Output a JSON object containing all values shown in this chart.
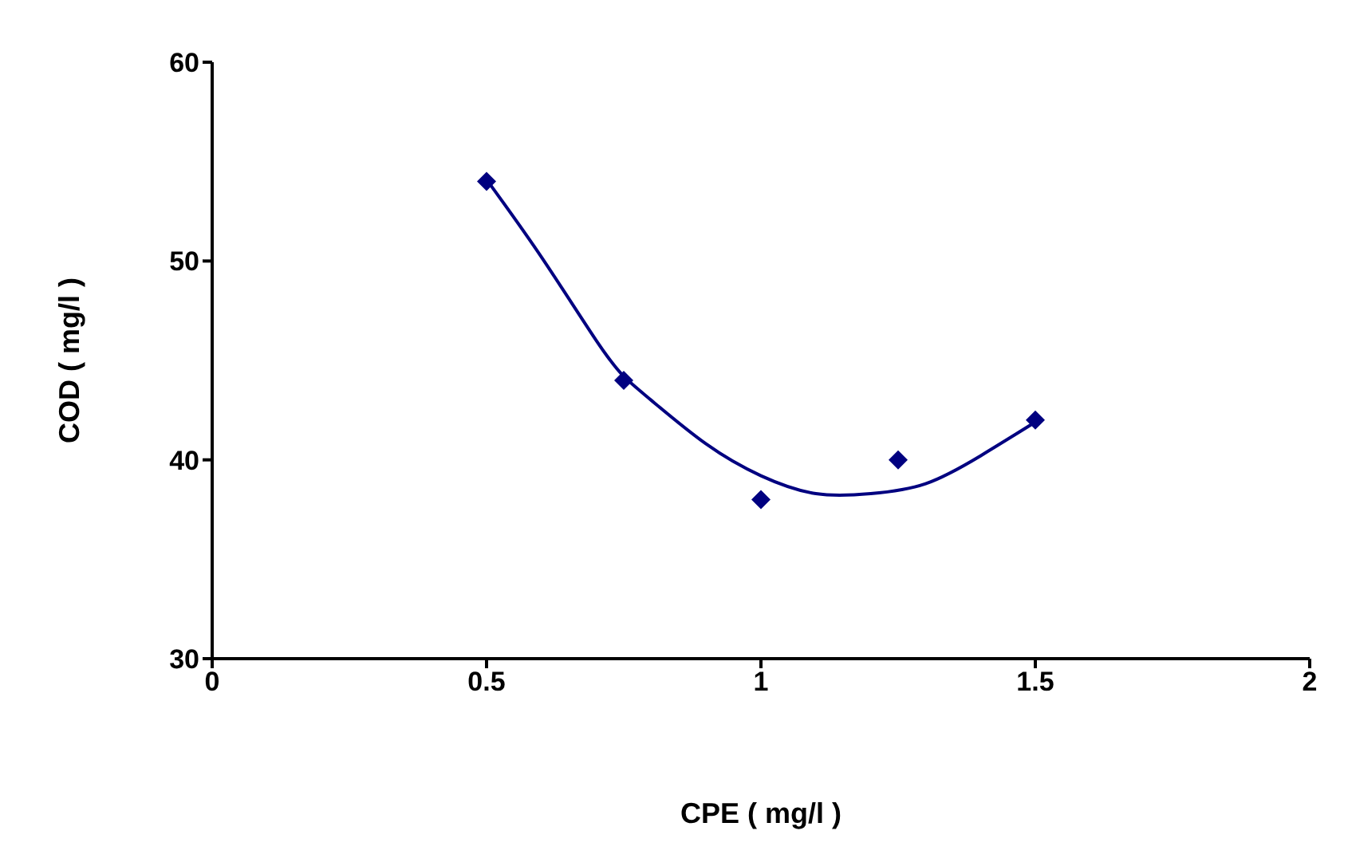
{
  "chart_data": {
    "type": "scatter",
    "xlabel": "CPE ( mg/l )",
    "ylabel": "COD ( mg/l )",
    "xlim": [
      0,
      2
    ],
    "xticks": [
      0,
      0.5,
      1,
      1.5,
      2
    ],
    "ylim": [
      30,
      60
    ],
    "yticks": [
      30,
      40,
      50,
      60
    ],
    "grid": false,
    "legend": false,
    "marker": "diamond",
    "series": [
      {
        "color": "#000080",
        "x": [
          0.5,
          0.75,
          1,
          1.25,
          1.5
        ],
        "values": [
          54,
          44,
          38,
          40,
          42
        ]
      },
      {
        "type": "line",
        "color": "#000080",
        "marker": "none",
        "line_style": "solid",
        "x": [
          0.5,
          0.6,
          0.7,
          0.75,
          0.8,
          0.9,
          1,
          1.1,
          1.2,
          1.3,
          1.4,
          1.5
        ],
        "values": [
          54.1,
          50.2,
          46,
          44.2,
          43,
          40.8,
          39.2,
          38.3,
          38.3,
          38.8,
          40.2,
          41.9
        ]
      }
    ]
  }
}
